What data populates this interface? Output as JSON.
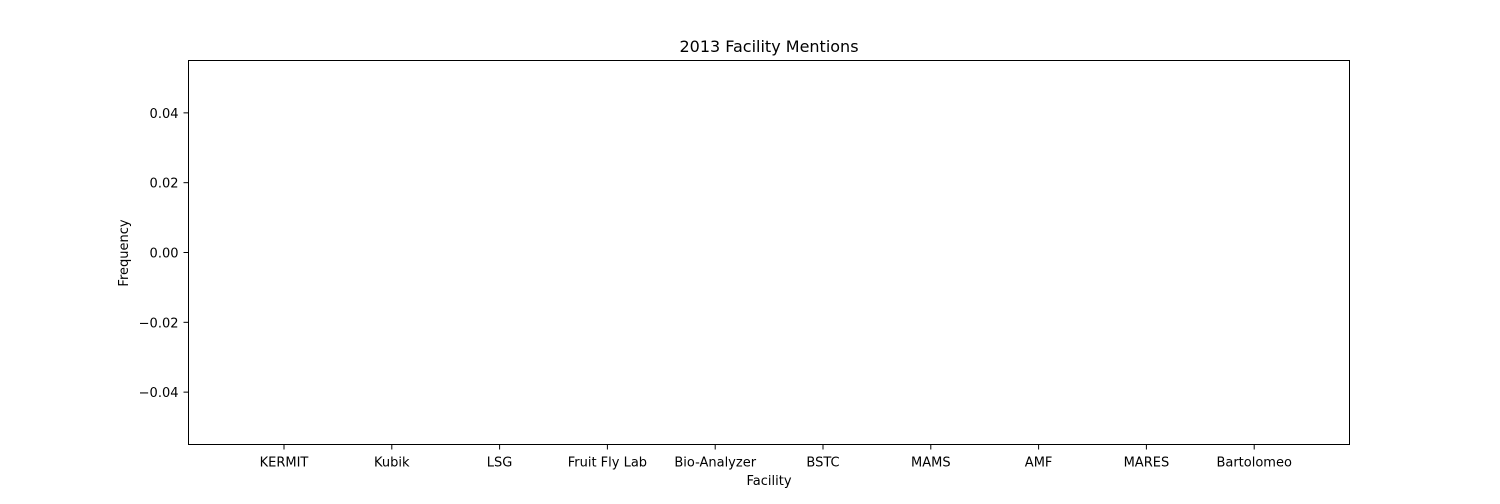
{
  "chart_data": {
    "type": "bar",
    "title": "2013 Facility Mentions",
    "xlabel": "Facility",
    "ylabel": "Frequency",
    "categories": [
      "KERMIT",
      "Kubik",
      "LSG",
      "Fruit Fly Lab",
      "Bio-Analyzer",
      "BSTC",
      "MAMS",
      "AMF",
      "MARES",
      "Bartolomeo"
    ],
    "values": [
      0,
      0,
      0,
      0,
      0,
      0,
      0,
      0,
      0,
      0
    ],
    "ylim": [
      -0.055,
      0.055
    ],
    "yticks": [
      -0.04,
      -0.02,
      0.0,
      0.02,
      0.04
    ],
    "ytick_labels": [
      "−0.04",
      "−0.02",
      "0.00",
      "0.02",
      "0.04"
    ],
    "grid": false,
    "bar_color": "#1f77b4"
  }
}
